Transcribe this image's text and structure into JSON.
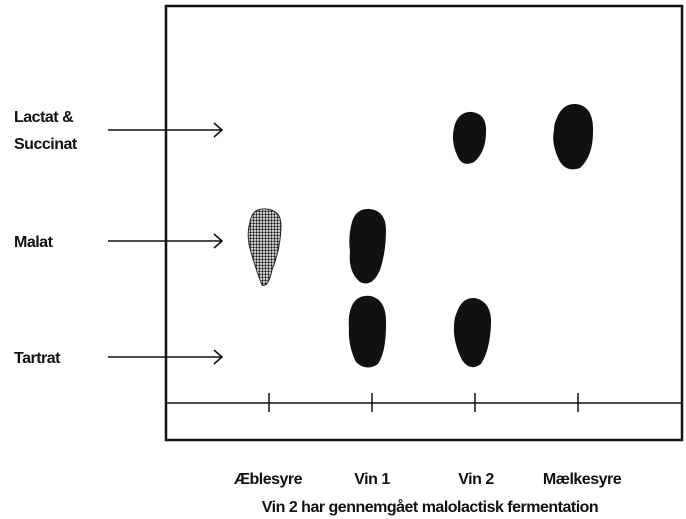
{
  "row_labels": [
    {
      "lines": [
        "Lactat &",
        "Succinat"
      ]
    },
    {
      "lines": [
        "Malat"
      ]
    },
    {
      "lines": [
        "Tartrat"
      ]
    }
  ],
  "lanes": [
    "Æblesyre",
    "Vin 1",
    "Vin 2",
    "Mælkesyre"
  ],
  "caption": "Vin 2 har gennemgået malolactisk fermentation"
}
